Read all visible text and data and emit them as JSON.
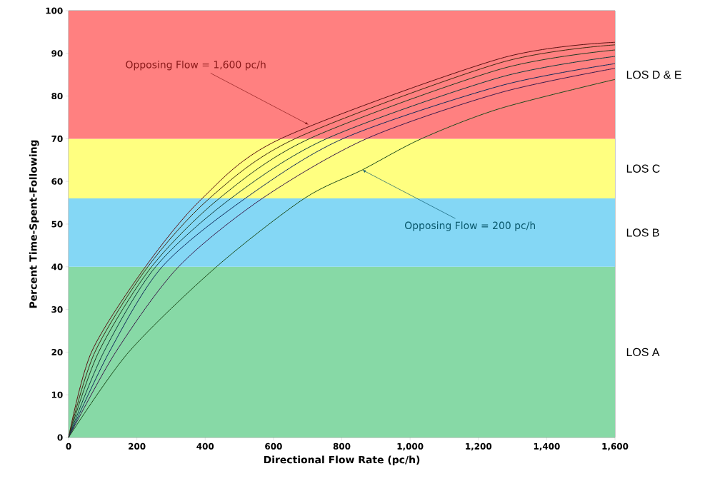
{
  "chart_data": {
    "type": "line",
    "xlabel": "Directional Flow Rate (pc/h)",
    "ylabel": "Percent Time-Spent-Following",
    "series": [
      {
        "color": "#5a1010",
        "x": [
          0,
          67,
          225,
          391,
          621,
          1264,
          1600
        ],
        "values": [
          0,
          20,
          40,
          56,
          70,
          88.8,
          92.6
        ]
      },
      {
        "color": "#3a2a10",
        "x": [
          0,
          77,
          232,
          412,
          663,
          1264,
          1600
        ],
        "values": [
          0,
          20,
          40,
          56,
          70,
          87.8,
          92.0
        ]
      },
      {
        "color": "#203a20",
        "x": [
          0,
          88,
          243,
          441,
          705,
          1264,
          1600
        ],
        "values": [
          0,
          20,
          40,
          56,
          70,
          86.3,
          90.8
        ]
      },
      {
        "color": "#103a3a",
        "x": [
          0,
          103,
          255,
          475,
          755,
          1264,
          1600
        ],
        "values": [
          0,
          20,
          40,
          56,
          70,
          84.4,
          89.3
        ]
      },
      {
        "color": "#102a5a",
        "x": [
          0,
          119,
          274,
          517,
          803,
          1264,
          1600
        ],
        "values": [
          0,
          20,
          40,
          56,
          70,
          82.4,
          87.6
        ]
      },
      {
        "color": "#3a1a4a",
        "x": [
          0,
          138,
          322,
          567,
          872,
          1264,
          1600
        ],
        "values": [
          0,
          20,
          40,
          56,
          70,
          80.8,
          86.5
        ]
      },
      {
        "color": "#1a4a1a",
        "x": [
          0,
          176,
          433,
          690,
          860,
          1033,
          1264,
          1600
        ],
        "values": [
          0,
          20,
          40,
          56,
          62.7,
          70,
          77.1,
          83.9
        ]
      }
    ],
    "bands": [
      {
        "axis": "y",
        "from": 0,
        "to": 40,
        "label": "LOS A",
        "color": "#87d9a6"
      },
      {
        "axis": "y",
        "from": 40,
        "to": 56,
        "label": "LOS B",
        "color": "#84d7f5"
      },
      {
        "axis": "y",
        "from": 56,
        "to": 70,
        "label": "LOS C",
        "color": "#ffff80"
      },
      {
        "axis": "y",
        "from": 70,
        "to": 100,
        "label": "LOS D & E",
        "color": "#ff8080"
      }
    ],
    "annotations": [
      {
        "text": "Opposing Flow = 1,600 pc/h",
        "x": 703,
        "y": 73.3
      },
      {
        "text": "Opposing Flow = 200 pc/h",
        "x": 860,
        "y": 62.7
      }
    ],
    "xlim": [
      0,
      1600
    ],
    "ylim": [
      0,
      100
    ],
    "xticks": [
      0,
      200,
      400,
      600,
      800,
      {
        "value": 1000,
        "label": "1,000"
      },
      {
        "value": 1200,
        "label": "1,200"
      },
      {
        "value": 1400,
        "label": "1,400"
      },
      {
        "value": 1600,
        "label": "1,600"
      }
    ],
    "yticks": [
      0,
      10,
      20,
      30,
      40,
      50,
      60,
      70,
      80,
      90,
      100
    ],
    "grid": false,
    "marker": "none",
    "line_style": "solid"
  }
}
